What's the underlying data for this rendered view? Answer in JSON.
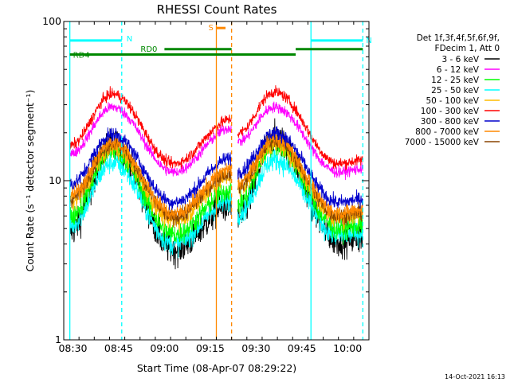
{
  "chart_data": {
    "type": "line",
    "title": "RHESSI Count Rates",
    "xlabel": "Start Time (08-Apr-07 08:29:22)",
    "ylabel_html": "Count Rate (s⁻¹ detector segment⁻¹)",
    "yscale": "log",
    "ylim": [
      1,
      100
    ],
    "x_domain": [
      "08:27",
      "10:07"
    ],
    "y_ticks": [
      "1",
      "10",
      "100"
    ],
    "x_ticks": [
      {
        "t": "08:30",
        "label": "08:30"
      },
      {
        "t": "08:45",
        "label": "08:45"
      },
      {
        "t": "09:00",
        "label": "09:00"
      },
      {
        "t": "09:15",
        "label": "09:15"
      },
      {
        "t": "09:30",
        "label": "09:30"
      },
      {
        "t": "09:45",
        "label": "09:45"
      },
      {
        "t": "10:00",
        "label": "10:00"
      }
    ],
    "legend_header": [
      "Det 1f,3f,4f,5f,6f,9f,",
      "FDecim 1, Att 0"
    ],
    "series": [
      {
        "name": "3 - 6 keV",
        "color": "#000000",
        "peak1": 17,
        "valley": 3.7,
        "peak2": 18.5,
        "end": 4.2,
        "noise": 0.1
      },
      {
        "name": "6 - 12 keV",
        "color": "#ff00ff",
        "peak1": 29,
        "valley": 11.3,
        "peak2": 29,
        "end": 11.3,
        "noise": 0.035
      },
      {
        "name": "12 - 25 keV",
        "color": "#00ff00",
        "peak1": 15.5,
        "valley": 4.6,
        "peak2": 17,
        "end": 5.0,
        "noise": 0.07
      },
      {
        "name": "25 - 50 keV",
        "color": "#00ffff",
        "peak1": 13,
        "valley": 4.0,
        "peak2": 13.5,
        "end": 4.5,
        "noise": 0.07
      },
      {
        "name": "50 - 100 keV",
        "color": "#ffbb00",
        "peak1": 16,
        "valley": 5.6,
        "peak2": 17,
        "end": 5.8,
        "noise": 0.06
      },
      {
        "name": "100 - 300 keV",
        "color": "#ff0000",
        "peak1": 35,
        "valley": 12.8,
        "peak2": 36,
        "end": 12.8,
        "noise": 0.035
      },
      {
        "name": "300 - 800 keV",
        "color": "#0000cc",
        "peak1": 19.5,
        "valley": 7.3,
        "peak2": 20,
        "end": 7.3,
        "noise": 0.045
      },
      {
        "name": "800 - 7000 keV",
        "color": "#ff8800",
        "peak1": 17.5,
        "valley": 6.2,
        "peak2": 18.5,
        "end": 6.3,
        "noise": 0.05
      },
      {
        "name": "7000 - 15000 keV",
        "color": "#884400",
        "peak1": 17,
        "valley": 5.9,
        "peak2": 18,
        "end": 6.0,
        "noise": 0.05
      }
    ],
    "data_segments": [
      {
        "start": "08:29",
        "end": "09:22"
      },
      {
        "start": "09:24",
        "end": "10:05"
      }
    ],
    "key_times": {
      "peak1": "08:43",
      "valley": "09:03",
      "peak2": "09:36",
      "valley2": "09:57"
    },
    "annotations": [
      {
        "text": "N",
        "color": "#00ffff",
        "type": "saa_bar",
        "start": "08:29",
        "end": "08:46",
        "y": 76
      },
      {
        "text": "N",
        "color": "#00ffff",
        "type": "saa_bar",
        "start": "09:48",
        "end": "10:05",
        "y": 76
      },
      {
        "text": "S",
        "color": "#ff8800",
        "type": "saa_bar",
        "start": "09:17",
        "end": "09:20",
        "y": 91
      },
      {
        "text": "RD0",
        "color": "#008800",
        "type": "bar",
        "start": "09:00",
        "end": "09:22",
        "y": 67
      },
      {
        "text": "RD4",
        "color": "#008800",
        "type": "bar",
        "start": "08:29",
        "end": "09:22",
        "y": 62
      },
      {
        "text": "",
        "color": "#008800",
        "type": "bar",
        "start": "09:22",
        "end": "09:43",
        "y": 62
      },
      {
        "text": "",
        "color": "#008800",
        "type": "bar",
        "start": "09:43",
        "end": "10:05",
        "y": 67
      }
    ],
    "vlines": [
      {
        "t": "08:46",
        "color": "#00ffff",
        "style": "dashed"
      },
      {
        "t": "08:29",
        "color": "#00ffff",
        "style": "solid"
      },
      {
        "t": "09:17",
        "color": "#ff8800",
        "style": "solid"
      },
      {
        "t": "09:22",
        "color": "#ff8800",
        "style": "dashed"
      },
      {
        "t": "09:48",
        "color": "#00ffff",
        "style": "solid"
      },
      {
        "t": "10:05",
        "color": "#00ffff",
        "style": "dashed"
      }
    ],
    "grid": false,
    "legend": "right"
  },
  "footer_timestamp": "14-Oct-2021 16:13"
}
